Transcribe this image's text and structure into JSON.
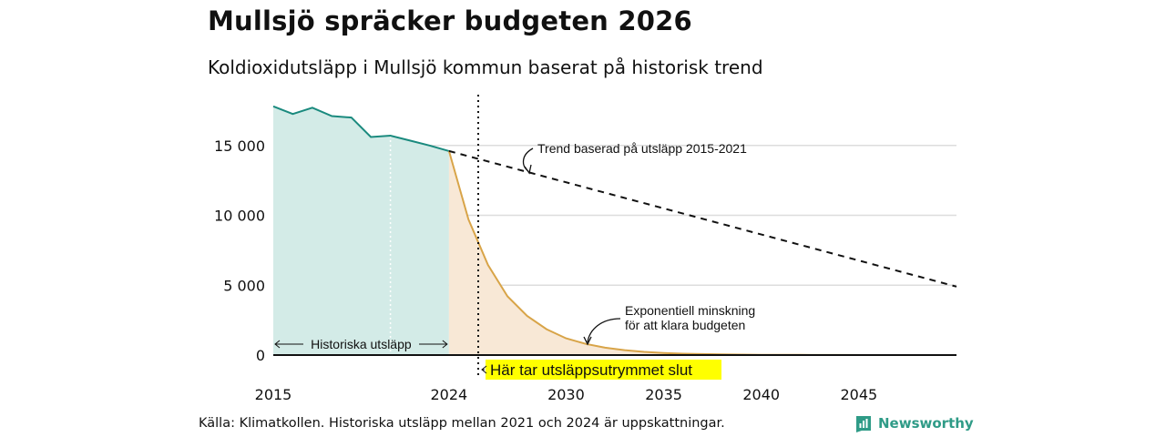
{
  "header": {
    "title": "Mullsjö spräcker budgeten 2026",
    "subtitle": "Koldioxidutsläpp i Mullsjö kommun baserat på historisk trend"
  },
  "footer": {
    "source": "Källa: Klimatkollen. Historiska utsläpp mellan 2021 och 2024 är uppskattningar.",
    "brand": "Newsworthy",
    "brand_color": "#2f9b87"
  },
  "chart_data": {
    "type": "area",
    "xlim": [
      2015,
      2050
    ],
    "ylim": [
      0,
      18000
    ],
    "x_ticks": [
      2015,
      2024,
      2030,
      2035,
      2040,
      2045
    ],
    "x_tick_labels": [
      "2015",
      "2024",
      "2030",
      "2035",
      "2040",
      "2045"
    ],
    "y_ticks": [
      0,
      5000,
      10000,
      15000
    ],
    "y_tick_labels": [
      "0",
      "5 000",
      "10 000",
      "15 000"
    ],
    "grid": true,
    "series": [
      {
        "key": "historical",
        "style": "area",
        "line_color": "#1a8a7e",
        "fill_color": "#d3ebe7",
        "x": [
          2015,
          2016,
          2017,
          2018,
          2019,
          2020,
          2021,
          2022,
          2023,
          2024
        ],
        "y": [
          17800,
          17250,
          17700,
          17100,
          17000,
          15600,
          15700,
          15350,
          15000,
          14600
        ]
      },
      {
        "key": "trend",
        "style": "dashed-line",
        "line_color": "#111111",
        "x": [
          2024,
          2050
        ],
        "y": [
          14600,
          4900
        ]
      },
      {
        "key": "budget",
        "style": "area",
        "line_color": "#d8a448",
        "fill_color": "#f8e8d6",
        "x": [
          2024,
          2025,
          2026,
          2027,
          2028,
          2029,
          2030,
          2031,
          2032,
          2033,
          2034,
          2035,
          2036,
          2037,
          2038,
          2039,
          2040,
          2042,
          2044,
          2046,
          2048,
          2050
        ],
        "y": [
          14600,
          9700,
          6450,
          4200,
          2800,
          1850,
          1200,
          800,
          530,
          350,
          230,
          150,
          100,
          70,
          45,
          30,
          20,
          10,
          5,
          3,
          2,
          1
        ]
      }
    ],
    "markers": {
      "budget_end_x": 2025.5,
      "historical_gap_x": 2021
    },
    "annotations": {
      "trend_label": "Trend baserad på utsläpp 2015-2021",
      "exp_label_line1": "Exponentiell minskning",
      "exp_label_line2": "för att klara budgeten",
      "hist_label": "Historiska utsläpp",
      "budget_end_label": "Här tar utsläppsutrymmet slut",
      "highlight_color": "#ffff00"
    }
  }
}
